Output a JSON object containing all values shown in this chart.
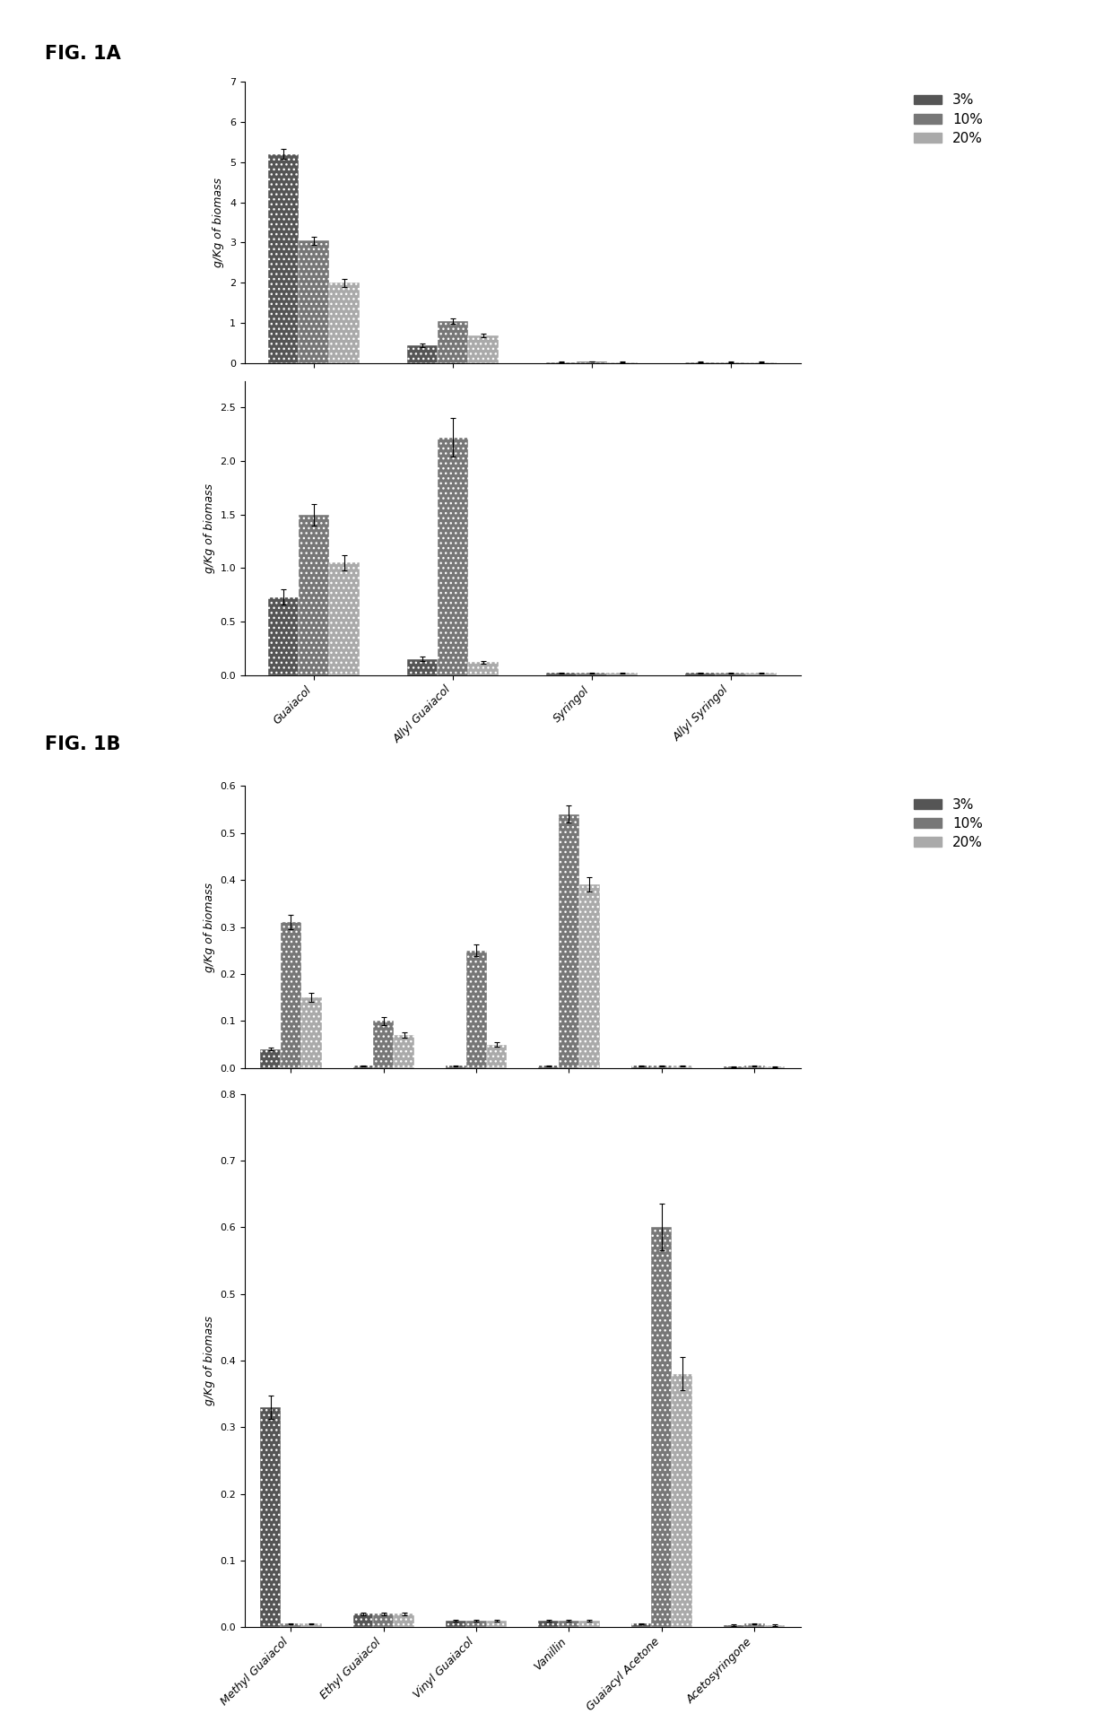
{
  "fig1a_top": {
    "categories": [
      "Guaiacol",
      "Allyl Guaiacol",
      "Syringol",
      "Allyl Syringol"
    ],
    "series_3pct": [
      5.2,
      0.45,
      0.04,
      0.04
    ],
    "series_10pct": [
      3.05,
      1.05,
      0.05,
      0.04
    ],
    "series_20pct": [
      2.0,
      0.7,
      0.04,
      0.04
    ],
    "errors_3pct": [
      0.12,
      0.04,
      0.005,
      0.005
    ],
    "errors_10pct": [
      0.1,
      0.07,
      0.005,
      0.005
    ],
    "errors_20pct": [
      0.1,
      0.05,
      0.005,
      0.005
    ],
    "ylim": [
      0,
      7
    ],
    "yticks": [
      0,
      1,
      2,
      3,
      4,
      5,
      6,
      7
    ],
    "ylabel": "g/Kg of biomass"
  },
  "fig1a_bottom": {
    "categories": [
      "Guaiacol",
      "Allyl Guaiacol",
      "Syringol",
      "Allyl Syringol"
    ],
    "series_3pct": [
      0.73,
      0.15,
      0.02,
      0.02
    ],
    "series_10pct": [
      1.5,
      2.22,
      0.02,
      0.02
    ],
    "series_20pct": [
      1.05,
      0.12,
      0.02,
      0.02
    ],
    "errors_3pct": [
      0.07,
      0.02,
      0.005,
      0.005
    ],
    "errors_10pct": [
      0.1,
      0.18,
      0.005,
      0.005
    ],
    "errors_20pct": [
      0.07,
      0.01,
      0.005,
      0.005
    ],
    "ylim": [
      0,
      2.75
    ],
    "yticks": [
      0,
      0.5,
      1.0,
      1.5,
      2.0,
      2.5
    ],
    "ylabel": "g/Kg of biomass"
  },
  "fig1b_top": {
    "categories": [
      "Methyl Guaiacol",
      "Ethyl Guaiacol",
      "Vinyl Guaiacol",
      "Vanillin",
      "Guaiacyl Acetone",
      "Acetosyringone"
    ],
    "series_3pct": [
      0.04,
      0.005,
      0.005,
      0.005,
      0.005,
      0.003
    ],
    "series_10pct": [
      0.31,
      0.1,
      0.25,
      0.54,
      0.005,
      0.005
    ],
    "series_20pct": [
      0.15,
      0.07,
      0.05,
      0.39,
      0.005,
      0.003
    ],
    "errors_3pct": [
      0.003,
      0.001,
      0.001,
      0.001,
      0.001,
      0.001
    ],
    "errors_10pct": [
      0.015,
      0.008,
      0.012,
      0.018,
      0.001,
      0.001
    ],
    "errors_20pct": [
      0.01,
      0.005,
      0.004,
      0.015,
      0.001,
      0.001
    ],
    "ylim": [
      0,
      0.6
    ],
    "yticks": [
      0,
      0.1,
      0.2,
      0.3,
      0.4,
      0.5,
      0.6
    ],
    "ylabel": "g/Kg of biomass"
  },
  "fig1b_bottom": {
    "categories": [
      "Methyl Guaiacol",
      "Ethyl Guaiacol",
      "Vinyl Guaiacol",
      "Vanillin",
      "Guaiacyl Acetone",
      "Acetosyringone"
    ],
    "series_3pct": [
      0.33,
      0.02,
      0.01,
      0.01,
      0.005,
      0.003
    ],
    "series_10pct": [
      0.005,
      0.02,
      0.01,
      0.01,
      0.6,
      0.005
    ],
    "series_20pct": [
      0.005,
      0.02,
      0.01,
      0.01,
      0.38,
      0.003
    ],
    "errors_3pct": [
      0.018,
      0.002,
      0.001,
      0.001,
      0.001,
      0.001
    ],
    "errors_10pct": [
      0.001,
      0.002,
      0.001,
      0.001,
      0.035,
      0.001
    ],
    "errors_20pct": [
      0.001,
      0.002,
      0.001,
      0.001,
      0.025,
      0.001
    ],
    "ylim": [
      0,
      0.8
    ],
    "yticks": [
      0,
      0.1,
      0.2,
      0.3,
      0.4,
      0.5,
      0.6,
      0.7,
      0.8
    ],
    "ylabel": "g/Kg of biomass"
  },
  "bar_hatches": [
    "...",
    "...",
    "..."
  ],
  "bar_colors": [
    "#555555",
    "#777777",
    "#aaaaaa"
  ],
  "legend_labels": [
    "3%",
    "10%",
    "20%"
  ],
  "bar_width": 0.22,
  "background_color": "#ffffff",
  "fig1a_label": "FIG. 1A",
  "fig1b_label": "FIG. 1B"
}
